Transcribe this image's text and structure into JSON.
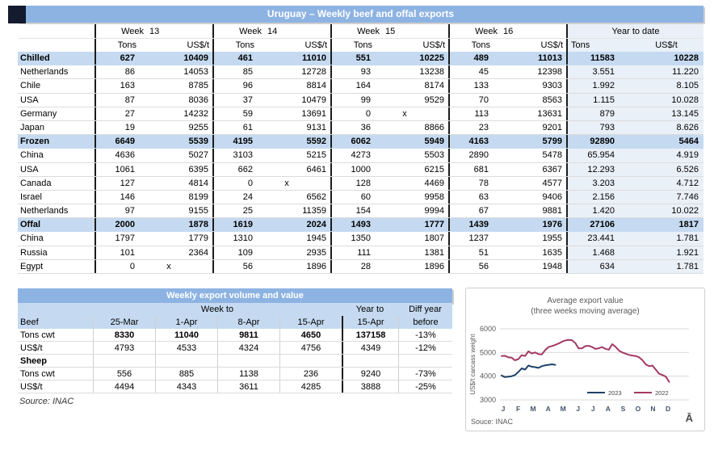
{
  "table1": {
    "title": "Uruguay – Weekly beef and offal exports",
    "week_label": "Week",
    "week_numbers": [
      "13",
      "14",
      "15",
      "16"
    ],
    "ytd_label": "Year to date",
    "tons_label": "Tons",
    "usd_label": "US$/t",
    "rows": [
      {
        "label": "Chilled",
        "type": "section",
        "values": [
          "627",
          "10409",
          "461",
          "11010",
          "551",
          "10225",
          "489",
          "11013",
          "11583",
          "10228"
        ]
      },
      {
        "label": "Netherlands",
        "type": "data",
        "values": [
          "86",
          "14053",
          "85",
          "12728",
          "93",
          "13238",
          "45",
          "12398",
          "3.551",
          "11.220"
        ]
      },
      {
        "label": "Chile",
        "type": "data",
        "values": [
          "163",
          "8785",
          "96",
          "8814",
          "164",
          "8174",
          "133",
          "9303",
          "1.992",
          "8.105"
        ]
      },
      {
        "label": "USA",
        "type": "data",
        "values": [
          "87",
          "8036",
          "37",
          "10479",
          "99",
          "9529",
          "70",
          "8563",
          "1.115",
          "10.028"
        ]
      },
      {
        "label": "Germany",
        "type": "data",
        "values": [
          "27",
          "14232",
          "59",
          "13691",
          "0",
          "x",
          "113",
          "13631",
          "879",
          "13.145"
        ]
      },
      {
        "label": "Japan",
        "type": "data",
        "values": [
          "19",
          "9255",
          "61",
          "9131",
          "36",
          "8866",
          "23",
          "9201",
          "793",
          "8.626"
        ]
      },
      {
        "label": "Frozen",
        "type": "section",
        "values": [
          "6649",
          "5539",
          "4195",
          "5592",
          "6062",
          "5949",
          "4163",
          "5799",
          "92890",
          "5464"
        ]
      },
      {
        "label": "China",
        "type": "data",
        "values": [
          "4636",
          "5027",
          "3103",
          "5215",
          "4273",
          "5503",
          "2890",
          "5478",
          "65.954",
          "4.919"
        ]
      },
      {
        "label": "USA",
        "type": "data",
        "values": [
          "1061",
          "6395",
          "662",
          "6461",
          "1000",
          "6215",
          "681",
          "6367",
          "12.293",
          "6.526"
        ]
      },
      {
        "label": "Canada",
        "type": "data",
        "values": [
          "127",
          "4814",
          "0",
          "x",
          "128",
          "4469",
          "78",
          "4577",
          "3.203",
          "4.712"
        ]
      },
      {
        "label": "Israel",
        "type": "data",
        "values": [
          "146",
          "8199",
          "24",
          "6562",
          "60",
          "9958",
          "63",
          "9406",
          "2.156",
          "7.746"
        ]
      },
      {
        "label": "Netherlands",
        "type": "data",
        "values": [
          "97",
          "9155",
          "25",
          "11359",
          "154",
          "9994",
          "67",
          "9881",
          "1.420",
          "10.022"
        ]
      },
      {
        "label": "Offal",
        "type": "section",
        "values": [
          "2000",
          "1878",
          "1619",
          "2024",
          "1493",
          "1777",
          "1439",
          "1976",
          "27106",
          "1817"
        ]
      },
      {
        "label": "China",
        "type": "data",
        "values": [
          "1797",
          "1779",
          "1310",
          "1945",
          "1350",
          "1807",
          "1237",
          "1955",
          "23.441",
          "1.781"
        ]
      },
      {
        "label": "Russia",
        "type": "data",
        "values": [
          "101",
          "2364",
          "109",
          "2935",
          "111",
          "1381",
          "51",
          "1635",
          "1.468",
          "1.921"
        ]
      },
      {
        "label": "Egypt",
        "type": "data",
        "values": [
          "0",
          "x",
          "56",
          "1896",
          "28",
          "1896",
          "56",
          "1948",
          "634",
          "1.781"
        ]
      }
    ]
  },
  "table2": {
    "title": "Weekly export volume and value",
    "week_to_label": "Week to",
    "year_to_line1": "Year to",
    "year_to_line2": "15-Apr",
    "diff_line1": "Diff year",
    "diff_line2": "before",
    "dates": [
      "25-Mar",
      "1-Apr",
      "8-Apr",
      "15-Apr"
    ],
    "beef_label": "Beef",
    "sheep_label": "Sheep",
    "rows": [
      {
        "section": "Beef",
        "label": "Tons cwt",
        "bold_values": true,
        "values": [
          "8330",
          "11040",
          "9811",
          "4650",
          "137158",
          "-13%"
        ]
      },
      {
        "section": "Beef",
        "label": "US$/t",
        "bold_values": false,
        "values": [
          "4793",
          "4533",
          "4324",
          "4756",
          "4349",
          "-12%"
        ]
      },
      {
        "section": "Sheep",
        "label": "Tons cwt",
        "bold_values": false,
        "values": [
          "556",
          "885",
          "1138",
          "236",
          "9240",
          "-73%"
        ]
      },
      {
        "section": "Sheep",
        "label": "US$/t",
        "bold_values": false,
        "values": [
          "4494",
          "4343",
          "3611",
          "4285",
          "3888",
          "-25%"
        ]
      }
    ],
    "source": "Source: INAC"
  },
  "chart_data": {
    "type": "line",
    "title": "Average export  value",
    "subtitle": "(three weeks moving average)",
    "ylabel": "US$/t carcass weight",
    "ylim": [
      3000,
      6000
    ],
    "yticks": [
      3000,
      4000,
      5000,
      6000
    ],
    "grid": "horizontal",
    "x_months": [
      "J",
      "F",
      "M",
      "A",
      "M",
      "J",
      "J",
      "A",
      "S",
      "O",
      "N",
      "D"
    ],
    "legend_position": "inside-bottom",
    "series": [
      {
        "name": "2023",
        "color": "#1f4268",
        "values": [
          4030,
          3960,
          3980,
          4000,
          4050,
          4180,
          4330,
          4280,
          4450,
          4400,
          4380,
          4350,
          4420,
          4460,
          4480,
          4500,
          4480
        ]
      },
      {
        "name": "2022",
        "color": "#a33a63",
        "values": [
          4850,
          4860,
          4800,
          4780,
          4670,
          4720,
          4890,
          4850,
          5050,
          4960,
          5000,
          4930,
          4920,
          5100,
          5230,
          5270,
          5320,
          5380,
          5450,
          5510,
          5530,
          5520,
          5400,
          5170,
          5180,
          5270,
          5280,
          5230,
          5150,
          5180,
          5230,
          5150,
          5120,
          5350,
          5240,
          5080,
          5000,
          4950,
          4900,
          4870,
          4850,
          4800,
          4680,
          4500,
          4420,
          4450,
          4280,
          4100,
          4050,
          3980,
          3760
        ]
      }
    ],
    "source": "Souce: INAC",
    "watermark": "Ā"
  },
  "colors": {
    "title_bar": "#8db3e2",
    "section_band": "#c5daf1",
    "ytd_background": "#eaf0f8",
    "line_2023": "#1f4268",
    "line_2022": "#a33a63",
    "chart_text": "#595959",
    "month_text": "#44546a"
  }
}
